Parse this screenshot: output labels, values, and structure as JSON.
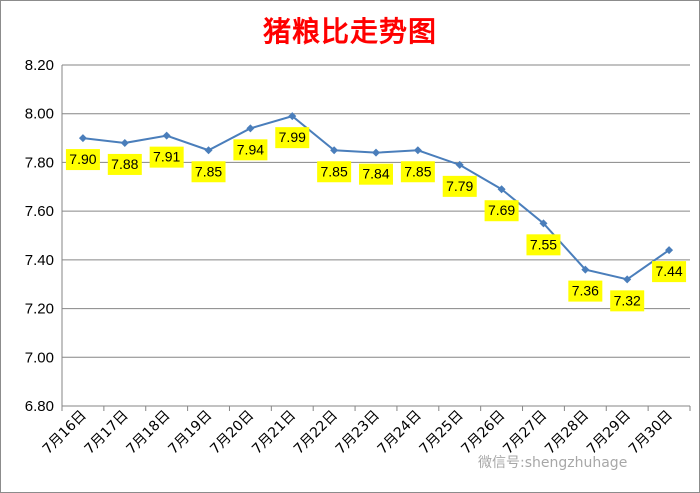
{
  "chart_data": {
    "type": "line",
    "title": "猪粮比走势图",
    "categories": [
      "7月16日",
      "7月17日",
      "7月18日",
      "7月19日",
      "7月20日",
      "7月21日",
      "7月22日",
      "7月23日",
      "7月24日",
      "7月25日",
      "7月26日",
      "7月27日",
      "7月28日",
      "7月29日",
      "7月30日"
    ],
    "series": [
      {
        "values": [
          7.9,
          7.88,
          7.91,
          7.85,
          7.94,
          7.99,
          7.85,
          7.84,
          7.85,
          7.79,
          7.69,
          7.55,
          7.36,
          7.32,
          7.44
        ]
      }
    ],
    "data_labels": [
      "7.90",
      "7.88",
      "7.91",
      "7.85",
      "7.94",
      "7.99",
      "7.85",
      "7.84",
      "7.85",
      "7.79",
      "7.69",
      "7.55",
      "7.36",
      "7.32",
      "7.44"
    ],
    "ylim": [
      6.8,
      8.2
    ],
    "yticks": [
      "6.80",
      "7.00",
      "7.20",
      "7.40",
      "7.60",
      "7.80",
      "8.00",
      "8.20"
    ],
    "xlabel": "",
    "ylabel": "",
    "grid": true,
    "colors": {
      "line": "#4a7ebb",
      "label_bg": "#ffff00",
      "title": "#ff0000",
      "grid": "#868686"
    }
  },
  "watermark": "微信号:shengzhuhage"
}
